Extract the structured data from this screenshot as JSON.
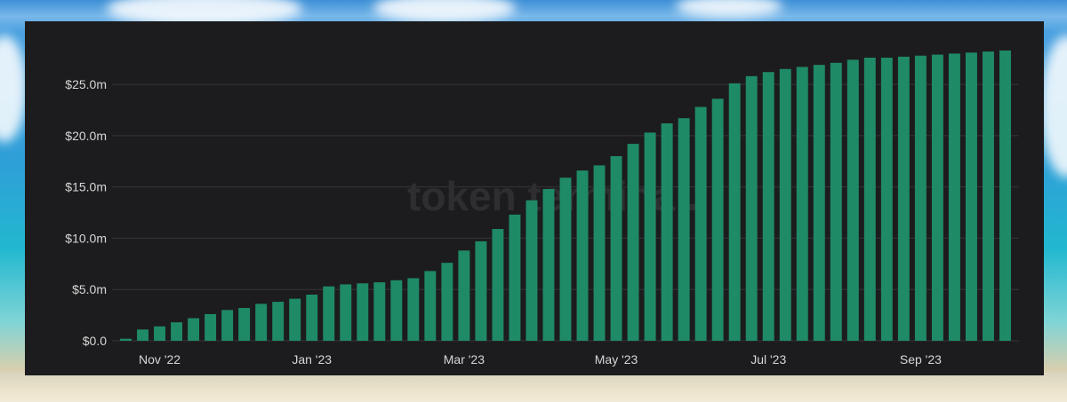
{
  "watermark": "token terminal.",
  "colors": {
    "bar": "#1f8a66",
    "panel": "#1c1c1e",
    "grid": "#34343a",
    "text": "#d6d6d6"
  },
  "chart_data": {
    "type": "bar",
    "title": "",
    "xlabel": "",
    "ylabel": "",
    "ylim": [
      0,
      28.9
    ],
    "y_ticks": [
      {
        "value": 0,
        "label": "$0.0"
      },
      {
        "value": 5,
        "label": "$5.0m"
      },
      {
        "value": 10,
        "label": "$10.0m"
      },
      {
        "value": 15,
        "label": "$15.0m"
      },
      {
        "value": 20,
        "label": "$20.0m"
      },
      {
        "value": 25,
        "label": "$25.0m"
      }
    ],
    "x_ticks": [
      {
        "index": 2,
        "label": "Nov '22"
      },
      {
        "index": 11,
        "label": "Jan '23"
      },
      {
        "index": 20,
        "label": "Mar '23"
      },
      {
        "index": 29,
        "label": "May '23"
      },
      {
        "index": 38,
        "label": "Jul '23"
      },
      {
        "index": 47,
        "label": "Sep '23"
      }
    ],
    "grid": true,
    "series": [
      {
        "values": [
          0.2,
          1.1,
          1.4,
          1.8,
          2.2,
          2.6,
          3.0,
          3.2,
          3.6,
          3.8,
          4.1,
          4.5,
          5.3,
          5.5,
          5.6,
          5.7,
          5.9,
          6.1,
          6.8,
          7.6,
          8.8,
          9.7,
          10.9,
          12.3,
          13.7,
          14.8,
          15.9,
          16.6,
          17.1,
          18.0,
          19.2,
          20.3,
          21.2,
          21.7,
          22.8,
          23.6,
          25.1,
          25.8,
          26.2,
          26.5,
          26.7,
          26.9,
          27.1,
          27.4,
          27.6,
          27.6,
          27.7,
          27.8,
          27.9,
          28.0,
          28.1,
          28.2,
          28.3
        ]
      }
    ]
  }
}
